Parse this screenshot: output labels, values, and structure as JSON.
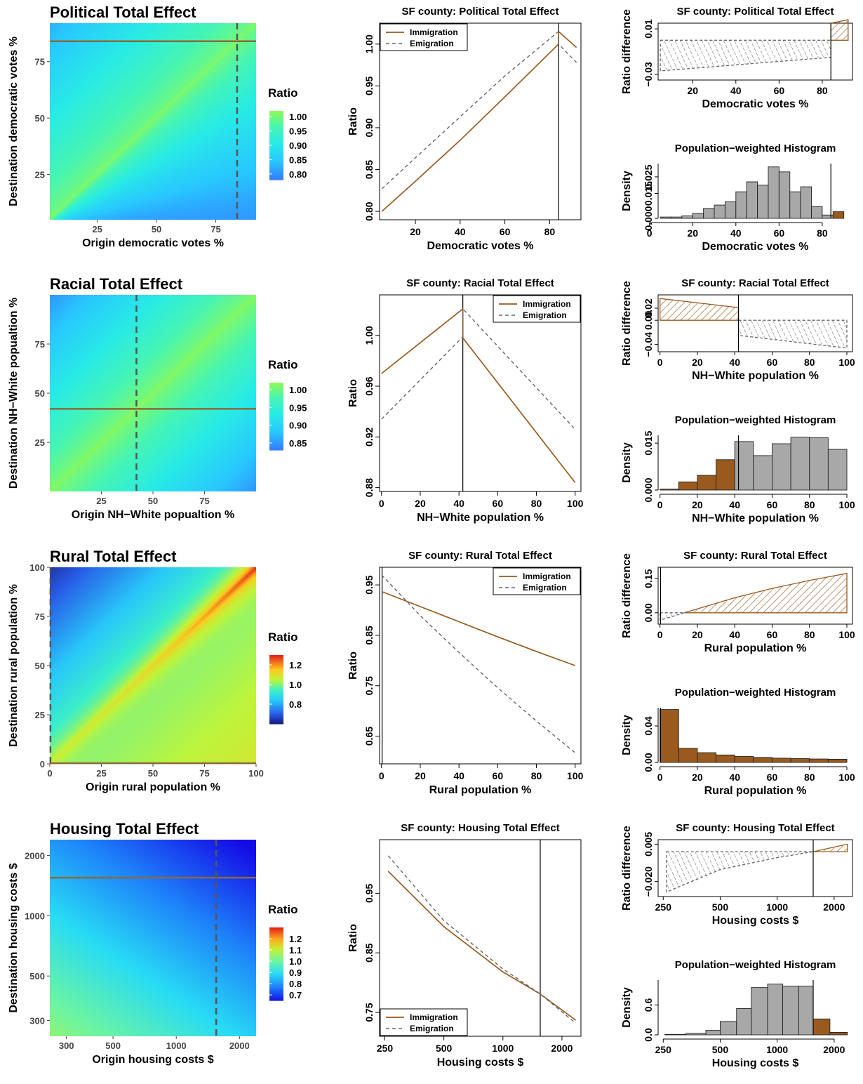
{
  "chart_data": [
    {
      "type": "heatmap",
      "title": "Political Total Effect",
      "xlabel": "Origin democratic votes %",
      "ylabel": "Destination democratic votes %",
      "xlim": [
        5,
        92
      ],
      "ylim": [
        5,
        92
      ],
      "xticks": [
        25,
        50,
        75
      ],
      "yticks": [
        25,
        50,
        75
      ],
      "marker_x": 84,
      "marker_y": 84,
      "colorbar": {
        "title": "Ratio",
        "min": 0.78,
        "max": 1.02,
        "ticks": [
          1.0,
          0.95,
          0.9,
          0.85,
          0.8
        ],
        "labels": [
          "1.00",
          "0.95",
          "0.90",
          "0.85",
          "0.80"
        ]
      }
    },
    {
      "type": "line",
      "title": "SF county: Political Total Effect",
      "xlabel": "Democratic votes %",
      "ylabel": "Ratio",
      "xlim": [
        4,
        94
      ],
      "ylim": [
        0.79,
        1.025
      ],
      "xticks": [
        20,
        40,
        60,
        80
      ],
      "yticks": [
        0.8,
        0.85,
        0.9,
        0.95,
        1.0
      ],
      "ytick_labels": [
        "0.80",
        "0.85",
        "0.90",
        "0.95",
        "1.00"
      ],
      "vline": 84,
      "legend": "top-left",
      "series": [
        {
          "name": "Immigration",
          "x": [
            5,
            20,
            40,
            60,
            84,
            84,
            92
          ],
          "y": [
            0.8,
            0.836,
            0.885,
            0.937,
            1.0,
            1.015,
            0.996
          ]
        },
        {
          "name": "Emigration",
          "x": [
            5,
            20,
            40,
            60,
            84,
            84,
            92
          ],
          "y": [
            0.827,
            0.864,
            0.913,
            0.962,
            1.015,
            1.0,
            0.978
          ]
        }
      ]
    },
    {
      "type": "area",
      "title": "SF county: Political Total Effect",
      "xlabel": "Democratic votes %",
      "ylabel": "Ratio difference",
      "xlim": [
        4,
        94
      ],
      "ylim": [
        -0.035,
        0.015
      ],
      "xticks": [
        20,
        40,
        60,
        80
      ],
      "yticks": [
        -0.03,
        0.01
      ],
      "ytick_labels": [
        "−0.03",
        "0.01"
      ],
      "vline": 84,
      "negative_region": {
        "x": [
          5,
          84
        ],
        "top": [
          0.0,
          0.0
        ],
        "bottom": [
          -0.027,
          -0.015
        ]
      },
      "positive_region": {
        "x": [
          84,
          92
        ],
        "top": [
          0.015,
          0.018
        ],
        "bottom": [
          0.0,
          0.0
        ]
      }
    },
    {
      "type": "bar",
      "title": "Population−weighted Histogram",
      "xlabel": "Democratic votes %",
      "ylabel": "Density",
      "xlim": [
        4,
        94
      ],
      "ylim": [
        0,
        0.033
      ],
      "xticks": [
        0,
        20,
        40,
        60,
        80
      ],
      "yticks": [
        0.0,
        0.015,
        0.025
      ],
      "ytick_labels": [
        "0.000",
        "0.015",
        "0.025"
      ],
      "vline": 84,
      "bins": [
        [
          5,
          10
        ],
        [
          10,
          15
        ],
        [
          15,
          20
        ],
        [
          20,
          25
        ],
        [
          25,
          30
        ],
        [
          30,
          35
        ],
        [
          35,
          40
        ],
        [
          40,
          45
        ],
        [
          45,
          50
        ],
        [
          50,
          55
        ],
        [
          55,
          60
        ],
        [
          60,
          65
        ],
        [
          65,
          70
        ],
        [
          70,
          75
        ],
        [
          75,
          80
        ],
        [
          80,
          85
        ],
        [
          85,
          90
        ]
      ],
      "values": [
        0.0008,
        0.0008,
        0.0015,
        0.003,
        0.006,
        0.008,
        0.01,
        0.016,
        0.022,
        0.02,
        0.031,
        0.028,
        0.016,
        0.019,
        0.007,
        0.002,
        0.004
      ],
      "highlight": "above"
    },
    {
      "type": "heatmap",
      "title": "Racial Total Effect",
      "xlabel": "Origin NH−White popualtion %",
      "ylabel": "Destination NH−White popualtion %",
      "xlim": [
        0,
        100
      ],
      "ylim": [
        0,
        100
      ],
      "xticks": [
        25,
        50,
        75
      ],
      "yticks": [
        25,
        50,
        75
      ],
      "marker_x": 42,
      "marker_y": 42,
      "colorbar": {
        "title": "Ratio",
        "min": 0.83,
        "max": 1.02,
        "ticks": [
          1.0,
          0.95,
          0.9,
          0.85
        ],
        "labels": [
          "1.00",
          "0.95",
          "0.90",
          "0.85"
        ]
      }
    },
    {
      "type": "line",
      "title": "SF county: Racial Total Effect",
      "xlabel": "NH−White population %",
      "ylabel": "Ratio",
      "xlim": [
        -1,
        103
      ],
      "ylim": [
        0.877,
        1.032
      ],
      "xticks": [
        0,
        20,
        40,
        60,
        80,
        100
      ],
      "yticks": [
        0.88,
        0.92,
        0.96,
        1.0
      ],
      "ytick_labels": [
        "0.88",
        "0.92",
        "0.96",
        "1.00"
      ],
      "vline": 42,
      "legend": "top-right",
      "series": [
        {
          "name": "Immigration",
          "x": [
            0,
            42,
            42,
            100
          ],
          "y": [
            0.97,
            1.021,
            0.998,
            0.884
          ]
        },
        {
          "name": "Emigration",
          "x": [
            0,
            42,
            42,
            100
          ],
          "y": [
            0.934,
            0.999,
            1.021,
            0.926
          ]
        }
      ]
    },
    {
      "type": "area",
      "title": "SF county: Racial Total Effect",
      "xlabel": "NH−White population %",
      "ylabel": "Ratio difference",
      "xlim": [
        -1,
        103
      ],
      "ylim": [
        -0.052,
        0.042
      ],
      "xticks": [
        0,
        20,
        40,
        60,
        80,
        100
      ],
      "yticks": [
        -0.04,
        0.0,
        0.02
      ],
      "ytick_labels": [
        "−0.04",
        "0.00",
        "0.02"
      ],
      "vline": 42,
      "positive_region": {
        "x": [
          0,
          42
        ],
        "top": [
          0.036,
          0.021
        ],
        "bottom": [
          0.0,
          0.0
        ]
      },
      "negative_region": {
        "x": [
          42,
          100
        ],
        "top": [
          0.0,
          0.0
        ],
        "bottom": [
          -0.025,
          -0.046
        ]
      }
    },
    {
      "type": "bar",
      "title": "Population−weighted Histogram",
      "xlabel": "NH−White population %",
      "ylabel": "Density",
      "xlim": [
        -1,
        103
      ],
      "ylim": [
        0,
        0.0175
      ],
      "xticks": [
        0,
        20,
        40,
        60,
        80,
        100
      ],
      "yticks": [
        0.0,
        0.015
      ],
      "ytick_labels": [
        "0.000",
        "0.015"
      ],
      "vline": 42,
      "bins": [
        [
          0,
          10
        ],
        [
          10,
          20
        ],
        [
          20,
          30
        ],
        [
          30,
          40
        ],
        [
          40,
          50
        ],
        [
          50,
          60
        ],
        [
          60,
          70
        ],
        [
          70,
          80
        ],
        [
          80,
          90
        ],
        [
          90,
          100
        ]
      ],
      "values": [
        0.0003,
        0.0026,
        0.0047,
        0.0097,
        0.0155,
        0.011,
        0.0148,
        0.0169,
        0.0167,
        0.013
      ],
      "highlight": "below"
    },
    {
      "type": "heatmap",
      "title": "Rural Total Effect",
      "xlabel": "Origin rural population %",
      "ylabel": "Destination rural population %",
      "xlim": [
        0,
        100
      ],
      "ylim": [
        0,
        100
      ],
      "xticks": [
        0,
        25,
        50,
        75,
        100
      ],
      "yticks": [
        0,
        25,
        50,
        75,
        100
      ],
      "marker_x": 0.3,
      "marker_y": 0.3,
      "colorbar": {
        "title": "Ratio",
        "min": 0.6,
        "max": 1.3,
        "ticks": [
          1.2,
          1.0,
          0.8
        ],
        "labels": [
          "1.2",
          "1.0",
          "0.8"
        ]
      }
    },
    {
      "type": "line",
      "title": "SF county: Rural Total Effect",
      "xlabel": "Rural population %",
      "ylabel": "Ratio",
      "xlim": [
        -1,
        103
      ],
      "ylim": [
        0.595,
        0.985
      ],
      "xticks": [
        0,
        20,
        40,
        60,
        80,
        100
      ],
      "yticks": [
        0.65,
        0.75,
        0.85,
        0.95
      ],
      "ytick_labels": [
        "0.65",
        "0.75",
        "0.85",
        "0.95"
      ],
      "vline": 0.3,
      "legend": "top-right",
      "series": [
        {
          "name": "Immigration",
          "x": [
            0,
            20,
            40,
            60,
            80,
            100
          ],
          "y": [
            0.937,
            0.907,
            0.877,
            0.847,
            0.818,
            0.79
          ]
        },
        {
          "name": "Emigration",
          "x": [
            0,
            20,
            40,
            60,
            80,
            100
          ],
          "y": [
            0.97,
            0.889,
            0.816,
            0.746,
            0.68,
            0.617
          ]
        }
      ]
    },
    {
      "type": "area",
      "title": "SF county: Rural Total Effect",
      "xlabel": "Rural population %",
      "ylabel": "Ratio difference",
      "xlim": [
        -1,
        103
      ],
      "ylim": [
        -0.05,
        0.2
      ],
      "xticks": [
        0,
        20,
        40,
        60,
        80,
        100
      ],
      "yticks": [
        0.0,
        0.15
      ],
      "ytick_labels": [
        "0.00",
        "0.15"
      ],
      "vline": 0.3,
      "negative_region": {
        "x": [
          0,
          13
        ],
        "top": [
          0.0,
          0.0
        ],
        "bottom": [
          -0.033,
          0.0
        ]
      },
      "positive_region": {
        "x": [
          13,
          40,
          60,
          80,
          100
        ],
        "top": [
          0.0,
          0.066,
          0.107,
          0.142,
          0.173
        ],
        "bottom": [
          0.0,
          0.0,
          0.0,
          0.0,
          0.0
        ]
      }
    },
    {
      "type": "bar",
      "title": "Population−weighted Histogram",
      "xlabel": "Rural population %",
      "ylabel": "Density",
      "xlim": [
        -1,
        103
      ],
      "ylim": [
        0,
        0.06
      ],
      "xticks": [
        0,
        20,
        40,
        60,
        80,
        100
      ],
      "yticks": [
        0.0,
        0.04
      ],
      "ytick_labels": [
        "0.00",
        "0.04"
      ],
      "vline": 0.3,
      "bins": [
        [
          0,
          10
        ],
        [
          10,
          20
        ],
        [
          20,
          30
        ],
        [
          30,
          40
        ],
        [
          40,
          50
        ],
        [
          50,
          60
        ],
        [
          60,
          70
        ],
        [
          70,
          80
        ],
        [
          80,
          90
        ],
        [
          90,
          100
        ]
      ],
      "values": [
        0.058,
        0.0155,
        0.0107,
        0.0082,
        0.0065,
        0.0055,
        0.0047,
        0.0042,
        0.0038,
        0.0035
      ],
      "highlight": "above"
    },
    {
      "type": "heatmap",
      "title": "Housing Total Effect",
      "xlabel": "Origin housing costs $",
      "ylabel": "Destination housing costs $",
      "xlim": [
        250,
        2400
      ],
      "ylim": [
        250,
        2400
      ],
      "scale": "log",
      "xticks": [
        300,
        500,
        1000,
        2000
      ],
      "yticks": [
        300,
        500,
        1000,
        2000
      ],
      "marker_x": 1550,
      "marker_y": 1550,
      "colorbar": {
        "title": "Ratio",
        "min": 0.65,
        "max": 1.3,
        "ticks": [
          1.2,
          1.1,
          1.0,
          0.9,
          0.8,
          0.7
        ],
        "labels": [
          "1.2",
          "1.1",
          "1.0",
          "0.9",
          "0.8",
          "0.7"
        ]
      }
    },
    {
      "type": "line",
      "title": "SF county: Housing Total Effect",
      "xlabel": "Housing costs $",
      "ylabel": "Ratio",
      "scale": "log",
      "xlim": [
        235,
        2500
      ],
      "ylim": [
        0.71,
        1.04
      ],
      "xticks": [
        250,
        500,
        1000,
        2000
      ],
      "yticks": [
        0.75,
        0.85,
        0.95
      ],
      "ytick_labels": [
        "0.75",
        "0.85",
        "0.95"
      ],
      "vline": 1550,
      "legend": "bottom-left",
      "series": [
        {
          "name": "Immigration",
          "x": [
            260,
            500,
            1000,
            1550,
            2350
          ],
          "y": [
            0.987,
            0.894,
            0.818,
            0.781,
            0.737
          ]
        },
        {
          "name": "Emigration",
          "x": [
            260,
            500,
            1000,
            1550,
            2350
          ],
          "y": [
            1.013,
            0.904,
            0.823,
            0.781,
            0.732
          ]
        }
      ]
    },
    {
      "type": "area",
      "title": "SF county: Housing Total Effect",
      "xlabel": "Housing costs $",
      "ylabel": "Ratio difference",
      "scale": "log",
      "xlim": [
        235,
        2500
      ],
      "ylim": [
        -0.03,
        0.008
      ],
      "xticks": [
        250,
        500,
        1000,
        2000
      ],
      "yticks": [
        -0.02,
        0.005
      ],
      "ytick_labels": [
        "−0.020",
        "0.005"
      ],
      "vline": 1550,
      "negative_region": {
        "x": [
          260,
          500,
          1000,
          1550
        ],
        "top": [
          0.0,
          0.0,
          0.0,
          0.0
        ],
        "bottom": [
          -0.027,
          -0.012,
          -0.004,
          0.0
        ]
      },
      "positive_region": {
        "x": [
          1550,
          2350
        ],
        "top": [
          0.0,
          0.005
        ],
        "bottom": [
          0.0,
          0.0
        ]
      }
    },
    {
      "type": "bar",
      "title": "Population−weighted Histogram",
      "xlabel": "Housing costs $",
      "ylabel": "Density",
      "scale": "log",
      "xlim": [
        235,
        2500
      ],
      "ylim": [
        0,
        1.1
      ],
      "xticks": [
        250,
        500,
        1000,
        2000
      ],
      "yticks": [
        0.0,
        0.6
      ],
      "ytick_labels": [
        "0.0",
        "0.6"
      ],
      "vline": 1550,
      "bins": [
        [
          255,
          330
        ],
        [
          330,
          420
        ],
        [
          420,
          500
        ],
        [
          500,
          610
        ],
        [
          610,
          730
        ],
        [
          730,
          890
        ],
        [
          890,
          1070
        ],
        [
          1070,
          1300
        ],
        [
          1300,
          1550
        ],
        [
          1550,
          1900
        ],
        [
          1900,
          2350
        ]
      ],
      "values": [
        0.01,
        0.03,
        0.09,
        0.27,
        0.53,
        0.95,
        1.02,
        0.98,
        0.98,
        0.32,
        0.05
      ],
      "highlight": "above"
    }
  ]
}
